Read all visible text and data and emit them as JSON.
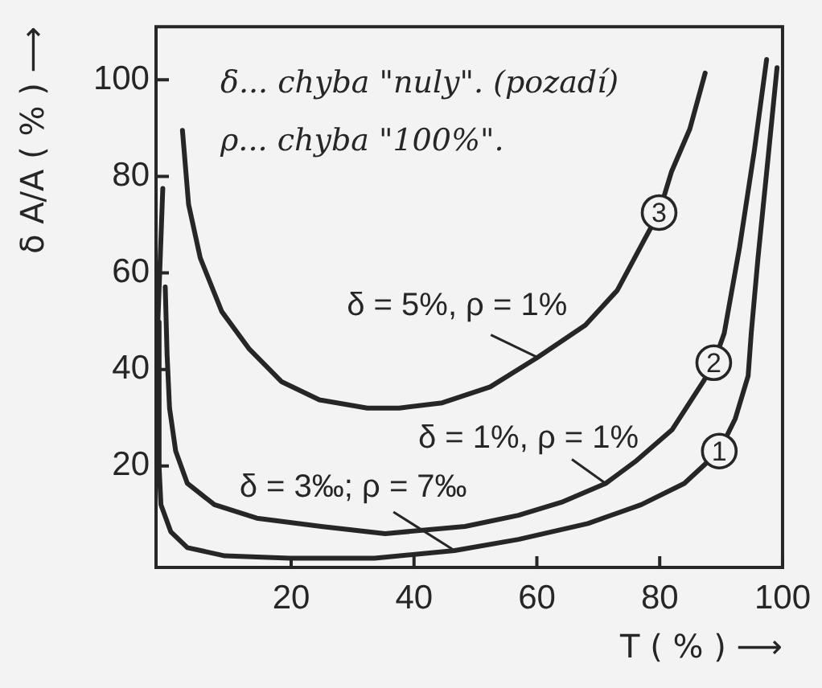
{
  "chart_data": {
    "type": "line",
    "xlabel": "T ( % ) ⟶",
    "ylabel": "δ A/A ( % ) ⟶",
    "xlim": [
      -2,
      100
    ],
    "ylim": [
      -1,
      111
    ],
    "xticks": [
      20,
      40,
      60,
      80,
      100
    ],
    "yticks": [
      20,
      40,
      60,
      80,
      100
    ],
    "grid": false,
    "legend": false,
    "marker": "none",
    "line_style": "solid",
    "series": [
      {
        "name": "1",
        "color": "#262626",
        "x": [
          -0.9,
          -1.7,
          -1.5,
          -1.2,
          0.4,
          3.1,
          9.2,
          19.7,
          33.6,
          46.6,
          57,
          68.3,
          77,
          84,
          89.7,
          92.3,
          94.4,
          94.9,
          96,
          97.5,
          99.1
        ],
        "values": [
          77.5,
          49.8,
          19.8,
          12,
          6.4,
          3.1,
          1.4,
          0.9,
          0.9,
          2.5,
          4.8,
          8.1,
          12,
          16.4,
          23.1,
          29.8,
          38.7,
          47.5,
          63.1,
          82,
          102.5
        ]
      },
      {
        "name": "2",
        "color": "#262626",
        "x": [
          -0.5,
          -0.2,
          0.2,
          1.2,
          3.1,
          7.5,
          14.4,
          24.9,
          35.3,
          48.3,
          57,
          64,
          71.2,
          76,
          82,
          87.1,
          88.8,
          90.5,
          93,
          95.4,
          97.4
        ],
        "values": [
          57.1,
          43.1,
          32,
          23.1,
          16.4,
          12,
          9.2,
          7.5,
          6,
          7.5,
          9.8,
          12.5,
          16.4,
          20.9,
          27.5,
          37.5,
          41.4,
          47.5,
          65.3,
          85.3,
          104.2
        ]
      },
      {
        "name": "3",
        "color": "#262626",
        "x": [
          2.3,
          3.3,
          5.2,
          8.7,
          13.2,
          18.4,
          24.6,
          32.4,
          37.6,
          44.6,
          52.4,
          60.1,
          67.9,
          73.1,
          77.3,
          79.9,
          81.9,
          84.9,
          87.4
        ],
        "values": [
          89.5,
          74.2,
          63.1,
          52,
          44.2,
          37.5,
          33.7,
          32,
          32,
          33.1,
          36.4,
          42.5,
          49.2,
          56.4,
          66.4,
          72.5,
          80.9,
          89.8,
          101.4
        ]
      }
    ],
    "annotations": [
      "δ... chyba \"nuly\". (pozadí)",
      "ρ... chyba \"100%\".",
      {
        "text": "δ = 5%, ρ = 1%",
        "x": 60.1,
        "y": 42.5
      },
      {
        "text": "δ = 1%, ρ = 1%",
        "x": 71.2,
        "y": 16.4
      },
      {
        "text": "δ = 3‰; ρ = 7‰",
        "x": 46.6,
        "y": 2.5
      }
    ]
  }
}
